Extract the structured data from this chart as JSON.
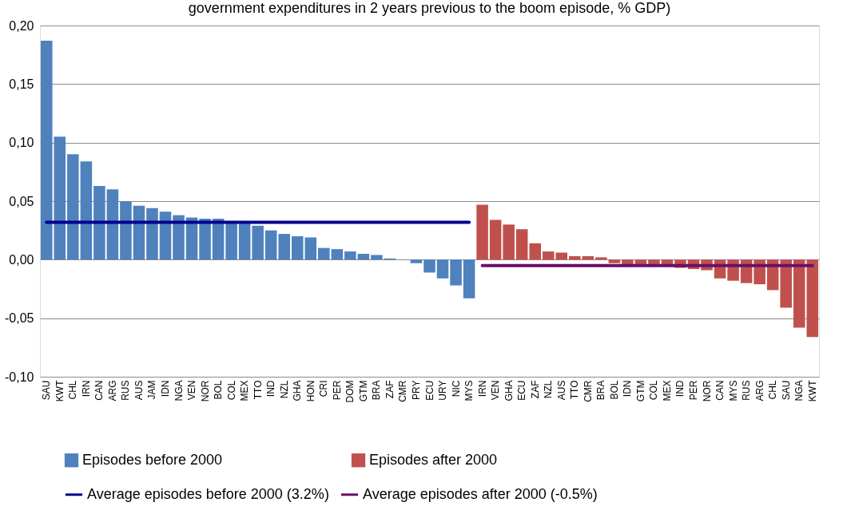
{
  "chart_data": {
    "type": "bar",
    "title": "government expenditures in 2 years previous to the boom episode, % GDP)",
    "categories": [
      "SAU",
      "KWT",
      "CHL",
      "IRN",
      "CAN",
      "ARG",
      "RUS",
      "AUS",
      "JAM",
      "IDN",
      "NGA",
      "VEN",
      "NOR",
      "BOL",
      "COL",
      "MEX",
      "TTO",
      "IND",
      "NZL",
      "GHA",
      "HON",
      "CRI",
      "PER",
      "DOM",
      "GTM",
      "BRA",
      "ZAF",
      "CMR",
      "PRY",
      "ECU",
      "URY",
      "NIC",
      "MYS",
      "IRN",
      "VEN",
      "GHA",
      "ECU",
      "ZAF",
      "NZL",
      "AUS",
      "TTO",
      "CMR",
      "BRA",
      "BOL",
      "IDN",
      "GTM",
      "COL",
      "MEX",
      "IND",
      "PER",
      "NOR",
      "CAN",
      "MYS",
      "RUS",
      "ARG",
      "CHL",
      "SAU",
      "NGA",
      "KWT"
    ],
    "series": [
      {
        "name": "Episodes before 2000",
        "color": "#4f81bd",
        "values": [
          0.187,
          0.105,
          0.09,
          0.084,
          0.063,
          0.06,
          0.05,
          0.046,
          0.044,
          0.041,
          0.038,
          0.036,
          0.035,
          0.035,
          0.032,
          0.032,
          0.029,
          0.025,
          0.022,
          0.02,
          0.019,
          0.01,
          0.009,
          0.007,
          0.005,
          0.004,
          0.001,
          0.0,
          -0.003,
          -0.011,
          -0.016,
          -0.022,
          -0.033,
          null,
          null,
          null,
          null,
          null,
          null,
          null,
          null,
          null,
          null,
          null,
          null,
          null,
          null,
          null,
          null,
          null,
          null,
          null,
          null,
          null,
          null,
          null,
          null,
          null,
          null
        ]
      },
      {
        "name": "Episodes after 2000",
        "color": "#c0504d",
        "values": [
          null,
          null,
          null,
          null,
          null,
          null,
          null,
          null,
          null,
          null,
          null,
          null,
          null,
          null,
          null,
          null,
          null,
          null,
          null,
          null,
          null,
          null,
          null,
          null,
          null,
          null,
          null,
          null,
          null,
          null,
          null,
          null,
          null,
          0.047,
          0.034,
          0.03,
          0.026,
          0.014,
          0.007,
          0.006,
          0.003,
          0.003,
          0.002,
          -0.003,
          -0.004,
          -0.005,
          -0.005,
          -0.005,
          -0.007,
          -0.008,
          -0.009,
          -0.016,
          -0.018,
          -0.02,
          -0.021,
          -0.026,
          -0.041,
          -0.058,
          -0.066
        ]
      },
      {
        "name": "Average episodes before 2000 (3.2%)",
        "type": "line",
        "color": "#000090",
        "values": [
          0.032,
          0.032,
          0.032,
          0.032,
          0.032,
          0.032,
          0.032,
          0.032,
          0.032,
          0.032,
          0.032,
          0.032,
          0.032,
          0.032,
          0.032,
          0.032,
          0.032,
          0.032,
          0.032,
          0.032,
          0.032,
          0.032,
          0.032,
          0.032,
          0.032,
          0.032,
          0.032,
          0.032,
          0.032,
          0.032,
          0.032,
          0.032,
          0.032,
          null,
          null,
          null,
          null,
          null,
          null,
          null,
          null,
          null,
          null,
          null,
          null,
          null,
          null,
          null,
          null,
          null,
          null,
          null,
          null,
          null,
          null,
          null,
          null,
          null,
          null
        ]
      },
      {
        "name": "Average episodes after 2000 (-0.5%)",
        "type": "line",
        "color": "#6a0f6a",
        "values": [
          null,
          null,
          null,
          null,
          null,
          null,
          null,
          null,
          null,
          null,
          null,
          null,
          null,
          null,
          null,
          null,
          null,
          null,
          null,
          null,
          null,
          null,
          null,
          null,
          null,
          null,
          null,
          null,
          null,
          null,
          null,
          null,
          null,
          -0.005,
          -0.005,
          -0.005,
          -0.005,
          -0.005,
          -0.005,
          -0.005,
          -0.005,
          -0.005,
          -0.005,
          -0.005,
          -0.005,
          -0.005,
          -0.005,
          -0.005,
          -0.005,
          -0.005,
          -0.005,
          -0.005,
          -0.005,
          -0.005,
          -0.005,
          -0.005,
          -0.005,
          -0.005,
          -0.005
        ]
      }
    ],
    "ylim": [
      -0.1,
      0.2
    ],
    "yticks": [
      {
        "value": -0.1,
        "label": "-0,10"
      },
      {
        "value": -0.05,
        "label": "-0,05"
      },
      {
        "value": 0,
        "label": "0,00"
      },
      {
        "value": 0.05,
        "label": "0,05"
      },
      {
        "value": 0.1,
        "label": "0,10"
      },
      {
        "value": 0.15,
        "label": "0,15"
      },
      {
        "value": 0.2,
        "label": "0,20"
      }
    ],
    "grid": "y",
    "legend": "bottom"
  }
}
